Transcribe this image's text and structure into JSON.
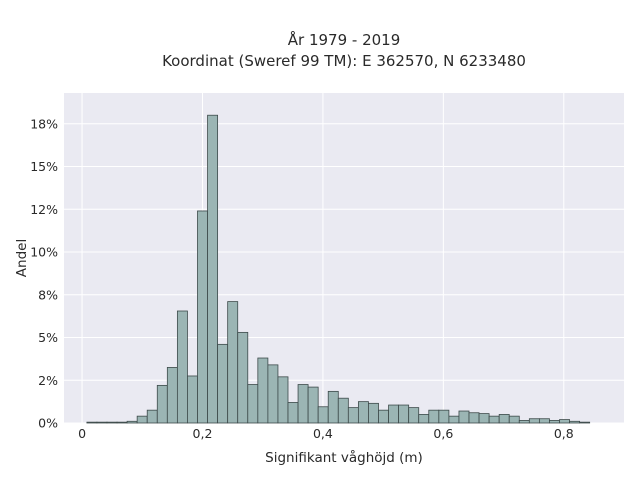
{
  "chart_data": {
    "type": "bar",
    "title": "År 1979 - 2019",
    "subtitle": "Koordinat (Sweref 99 TM): E 362570, N 6233480",
    "xlabel": "Signifikant våghöjd (m)",
    "ylabel": "Andel",
    "xlim": [
      -0.03,
      0.9
    ],
    "ylim": [
      0,
      0.193
    ],
    "grid": true,
    "legend": "none",
    "bin_width": 0.0167,
    "bin_start": 0.008,
    "x_ticks": [
      {
        "value": 0,
        "label": "0"
      },
      {
        "value": 0.2,
        "label": "0,2"
      },
      {
        "value": 0.4,
        "label": "0,4"
      },
      {
        "value": 0.6,
        "label": "0,6"
      },
      {
        "value": 0.8,
        "label": "0,8"
      }
    ],
    "y_ticks": [
      {
        "value": 0,
        "label": "0%"
      },
      {
        "value": 0.025,
        "label": "2%"
      },
      {
        "value": 0.05,
        "label": "5%"
      },
      {
        "value": 0.075,
        "label": "8%"
      },
      {
        "value": 0.1,
        "label": "10%"
      },
      {
        "value": 0.125,
        "label": "12%"
      },
      {
        "value": 0.15,
        "label": "15%"
      },
      {
        "value": 0.175,
        "label": "18%"
      }
    ],
    "values": [
      0.0005,
      0.0005,
      0.0005,
      0.0005,
      0.001,
      0.004,
      0.0075,
      0.022,
      0.0325,
      0.0655,
      0.0275,
      0.124,
      0.18,
      0.046,
      0.071,
      0.053,
      0.0225,
      0.038,
      0.034,
      0.027,
      0.012,
      0.0225,
      0.021,
      0.0095,
      0.0185,
      0.0145,
      0.009,
      0.0125,
      0.0115,
      0.0075,
      0.0105,
      0.0105,
      0.009,
      0.005,
      0.0075,
      0.0075,
      0.004,
      0.007,
      0.006,
      0.0055,
      0.004,
      0.005,
      0.004,
      0.0015,
      0.0025,
      0.0025,
      0.0015,
      0.002,
      0.001,
      0.0005
    ],
    "colors": {
      "bar_fill": "#9bb5b4",
      "bar_stroke": "#3d4a4a",
      "plot_background": "#eaeaf2",
      "grid": "#ffffff"
    }
  }
}
